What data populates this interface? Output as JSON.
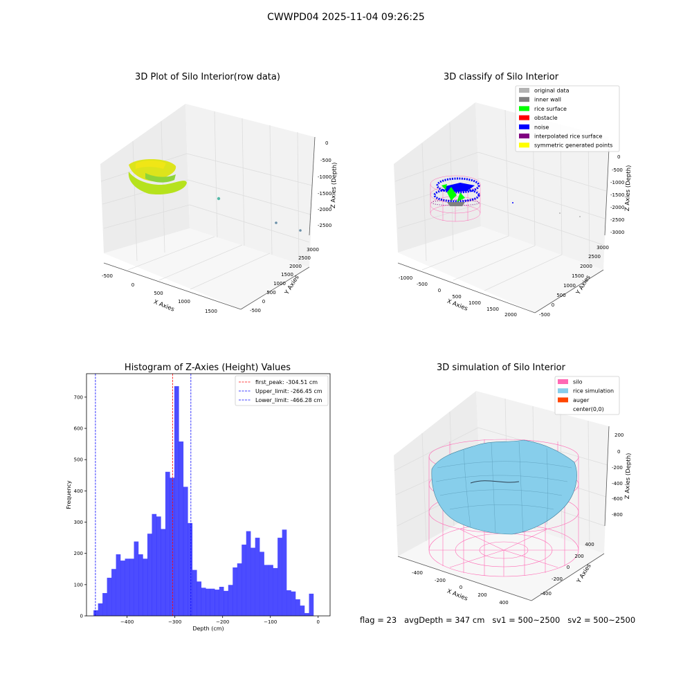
{
  "figure": {
    "title": "CWWPD04 2025-11-04 09:26:25",
    "footer": "flag = 23   avgDepth = 347 cm   sv1 = 500~2500   sv2 = 500~2500"
  },
  "panels": {
    "raw": {
      "title": "3D Plot of Silo Interior(row data)",
      "xlabel": "X Axies",
      "ylabel": "Y Axies",
      "zlabel": "Z Axies (Depth)",
      "xticks": [
        "-500",
        "0",
        "500",
        "1000",
        "1500"
      ],
      "yticks": [
        "-500",
        "0",
        "500",
        "1000",
        "1500",
        "2000",
        "2500",
        "3000"
      ],
      "zticks": [
        "0",
        "-500",
        "-1000",
        "-1500",
        "-2000",
        "-2500"
      ]
    },
    "classify": {
      "title": "3D classify of Silo Interior",
      "xlabel": "X Axies",
      "ylabel": "Y Axies",
      "zlabel": "Z Axies (Depth)",
      "xticks": [
        "-1000",
        "-500",
        "0",
        "500",
        "1000",
        "1500",
        "2000"
      ],
      "yticks": [
        "-500",
        "0",
        "500",
        "1000",
        "1500",
        "2000",
        "2500",
        "3000"
      ],
      "zticks": [
        "0",
        "-500",
        "-1000",
        "-1500",
        "-2000",
        "-2500",
        "-3000"
      ],
      "legend": [
        {
          "label": "original data",
          "color": "#b3b3b3"
        },
        {
          "label": "inner wall",
          "color": "#808080"
        },
        {
          "label": "rice surface",
          "color": "#00ff00"
        },
        {
          "label": "obstacle",
          "color": "#ff0000"
        },
        {
          "label": "noise",
          "color": "#0000ff"
        },
        {
          "label": "interpolated rice surface",
          "color": "#800080"
        },
        {
          "label": "symmetric generated points",
          "color": "#ffff00"
        }
      ]
    },
    "simulation": {
      "title": "3D simulation of Silo Interior",
      "xlabel": "X Axies",
      "ylabel": "Y Axies",
      "zlabel": "Z Axies (Depth)",
      "xticks": [
        "-400",
        "-200",
        "0",
        "200",
        "400"
      ],
      "yticks": [
        "-400",
        "-200",
        "0",
        "200",
        "400"
      ],
      "zticks": [
        "200",
        "0",
        "-200",
        "-400",
        "-600",
        "-800"
      ],
      "legend": [
        {
          "label": "silo",
          "color": "#ff69b4"
        },
        {
          "label": "rice simulation",
          "color": "#87ceeb"
        },
        {
          "label": "auger",
          "color": "#ff4500"
        },
        {
          "label": "center(0,0)",
          "color": ""
        }
      ]
    }
  },
  "chart_data": [
    {
      "type": "bar",
      "title": "Histogram of Z-Axies (Height) Values",
      "xlabel": "Depth (cm)",
      "ylabel": "Frequency",
      "xlim": [
        -485,
        25
      ],
      "ylim": [
        0,
        775
      ],
      "xticks": [
        -400,
        -300,
        -200,
        -100,
        0
      ],
      "yticks": [
        0,
        100,
        200,
        300,
        400,
        500,
        600,
        700
      ],
      "bar_color": "#0000ff",
      "bin_start": -470.3,
      "bin_width": 9.4,
      "values": [
        18,
        40,
        73,
        122,
        150,
        197,
        177,
        183,
        183,
        238,
        197,
        183,
        263,
        326,
        318,
        278,
        461,
        442,
        735,
        558,
        413,
        297,
        147,
        110,
        90,
        87,
        87,
        84,
        93,
        80,
        99,
        155,
        168,
        228,
        271,
        218,
        250,
        205,
        163,
        163,
        153,
        250,
        276,
        82,
        78,
        53,
        33,
        9,
        71
      ],
      "lines": [
        {
          "label": "first_peak: -304.51 cm",
          "x": -304.51,
          "color": "#ff0000"
        },
        {
          "label": "Upper_limit: -266.45 cm",
          "x": -266.45,
          "color": "#0000ff"
        },
        {
          "label": "Lower_limit: -466.28 cm",
          "x": -466.28,
          "color": "#0000ff"
        }
      ],
      "legend_position": "top-right",
      "grid": false
    }
  ]
}
